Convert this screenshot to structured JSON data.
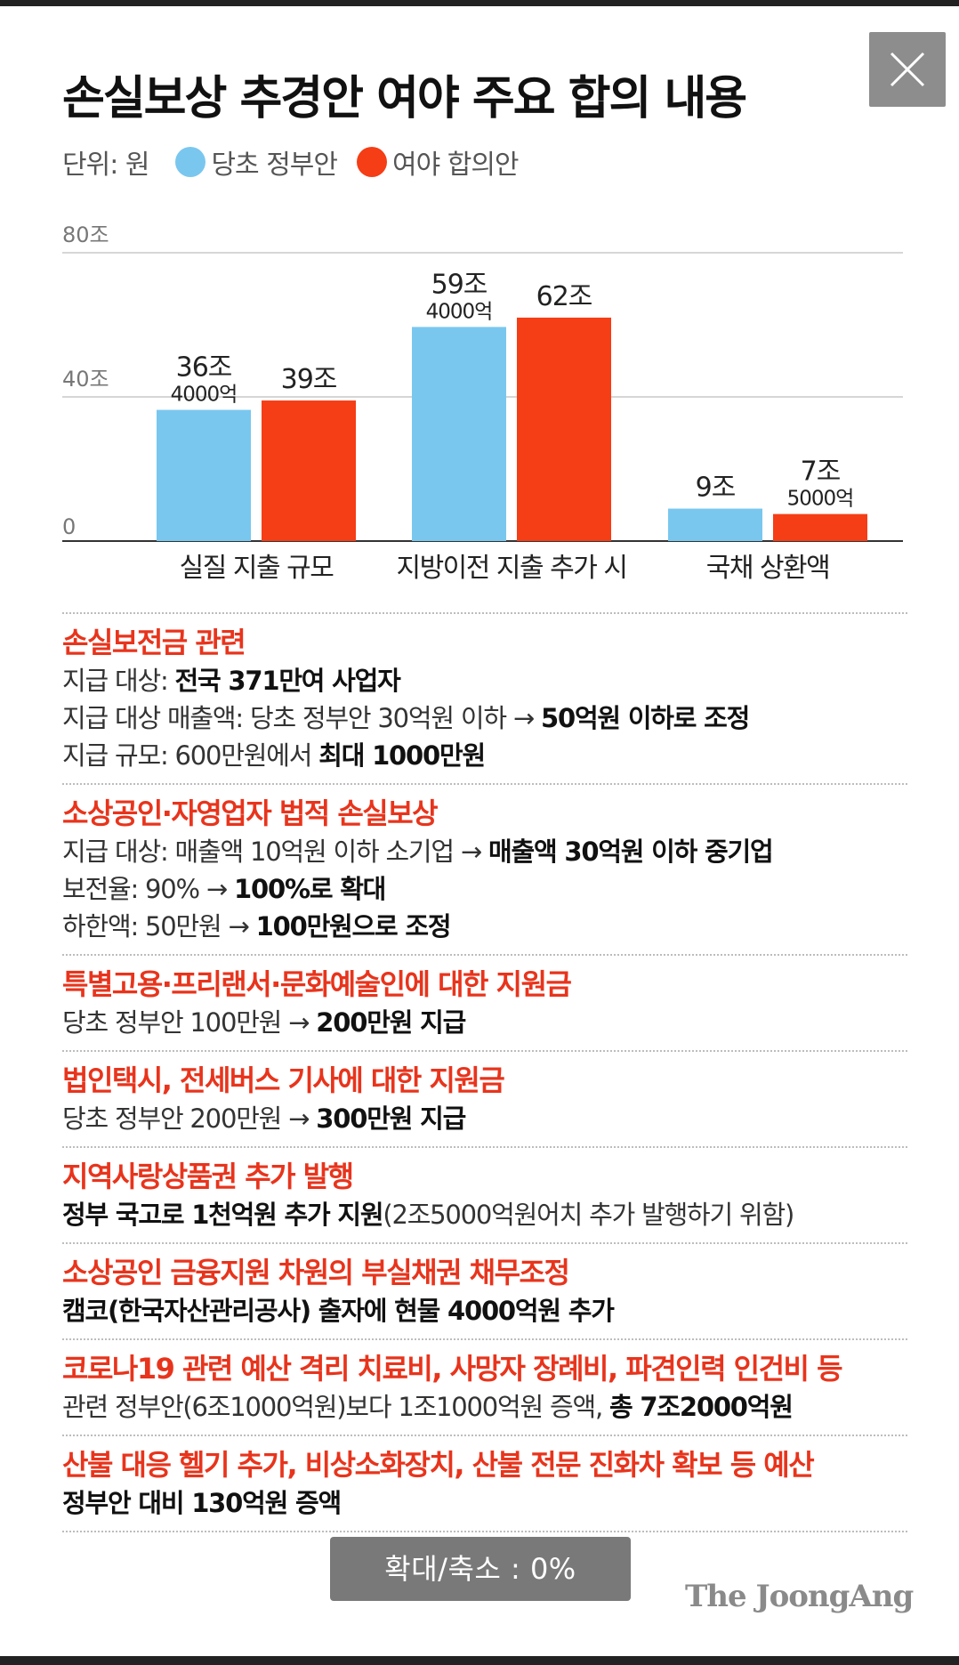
{
  "title": "손실보상 추경안 여야 주요 합의 내용",
  "legend": {
    "unit": "단위: 원",
    "items": [
      {
        "label": "당초 정부안",
        "color": "#79c7ef"
      },
      {
        "label": "여야 합의안",
        "color": "#f53d16"
      }
    ]
  },
  "chart_data": {
    "type": "bar",
    "categories": [
      "실질 지출 규모",
      "지방이전 지출 추가 시",
      "국채 상환액"
    ],
    "ylim": [
      0,
      80
    ],
    "yticks": [
      0,
      40,
      80
    ],
    "ytick_labels": [
      "0",
      "40조",
      "80조"
    ],
    "series": [
      {
        "name": "당초 정부안",
        "color": "#79c7ef",
        "values": [
          36.4,
          59.4,
          9
        ],
        "labels": [
          [
            "36조",
            "4000억"
          ],
          [
            "59조",
            "4000억"
          ],
          [
            "9조"
          ]
        ]
      },
      {
        "name": "여야 합의안",
        "color": "#f53d16",
        "values": [
          39,
          62,
          7.5
        ],
        "labels": [
          [
            "39조"
          ],
          [
            "62조"
          ],
          [
            "7조",
            "5000억"
          ]
        ]
      }
    ]
  },
  "sections": [
    {
      "title": "손실보전금 관련",
      "lines": [
        {
          "pre": "지급 대상: ",
          "bold": "전국 371만여 사업자",
          "post": ""
        },
        {
          "pre": "지급 대상 매출액: 당초 정부안 30억원 이하 → ",
          "bold": "50억원 이하로 조정",
          "post": ""
        },
        {
          "pre": "지급 규모: 600만원에서 ",
          "bold": "최대 1000만원",
          "post": ""
        }
      ]
    },
    {
      "title": "소상공인·자영업자 법적 손실보상",
      "lines": [
        {
          "pre": "지급 대상: 매출액 10억원 이하 소기업 → ",
          "bold": "매출액 30억원 이하 중기업",
          "post": ""
        },
        {
          "pre": "보전율: 90% → ",
          "bold": "100%로 확대",
          "post": ""
        },
        {
          "pre": "하한액: 50만원 → ",
          "bold": "100만원으로 조정",
          "post": ""
        }
      ]
    },
    {
      "title": "특별고용·프리랜서·문화예술인에 대한 지원금",
      "lines": [
        {
          "pre": "당초 정부안 100만원 → ",
          "bold": "200만원 지급",
          "post": ""
        }
      ]
    },
    {
      "title": "법인택시, 전세버스 기사에 대한 지원금",
      "lines": [
        {
          "pre": "당초 정부안 200만원 → ",
          "bold": "300만원 지급",
          "post": ""
        }
      ]
    },
    {
      "title": "지역사랑상품권 추가 발행",
      "lines": [
        {
          "pre": "",
          "bold": "정부 국고로 1천억원 추가 지원",
          "post": "(2조5000억원어치 추가 발행하기 위함)"
        }
      ]
    },
    {
      "title": "소상공인 금융지원 차원의 부실채권 채무조정",
      "lines": [
        {
          "pre": "",
          "bold": "캠코(한국자산관리공사) 출자에 현물 4000억원 추가",
          "post": ""
        }
      ]
    },
    {
      "title": "코로나19 관련 예산 격리 치료비, 사망자 장례비, 파견인력 인건비 등",
      "lines": [
        {
          "pre": "관련 정부안(6조1000억원)보다 1조1000억원 증액, ",
          "bold": "총 7조2000억원",
          "post": ""
        }
      ]
    },
    {
      "title": "산불 대응 헬기 추가, 비상소화장치, 산불 전문 진화차 확보 등 예산",
      "lines": [
        {
          "pre": "",
          "bold": "정부안 대비 130억원 증액",
          "post": ""
        }
      ]
    }
  ],
  "zoom_toast": "확대/축소 : 0%",
  "brand": "The JoongAng"
}
